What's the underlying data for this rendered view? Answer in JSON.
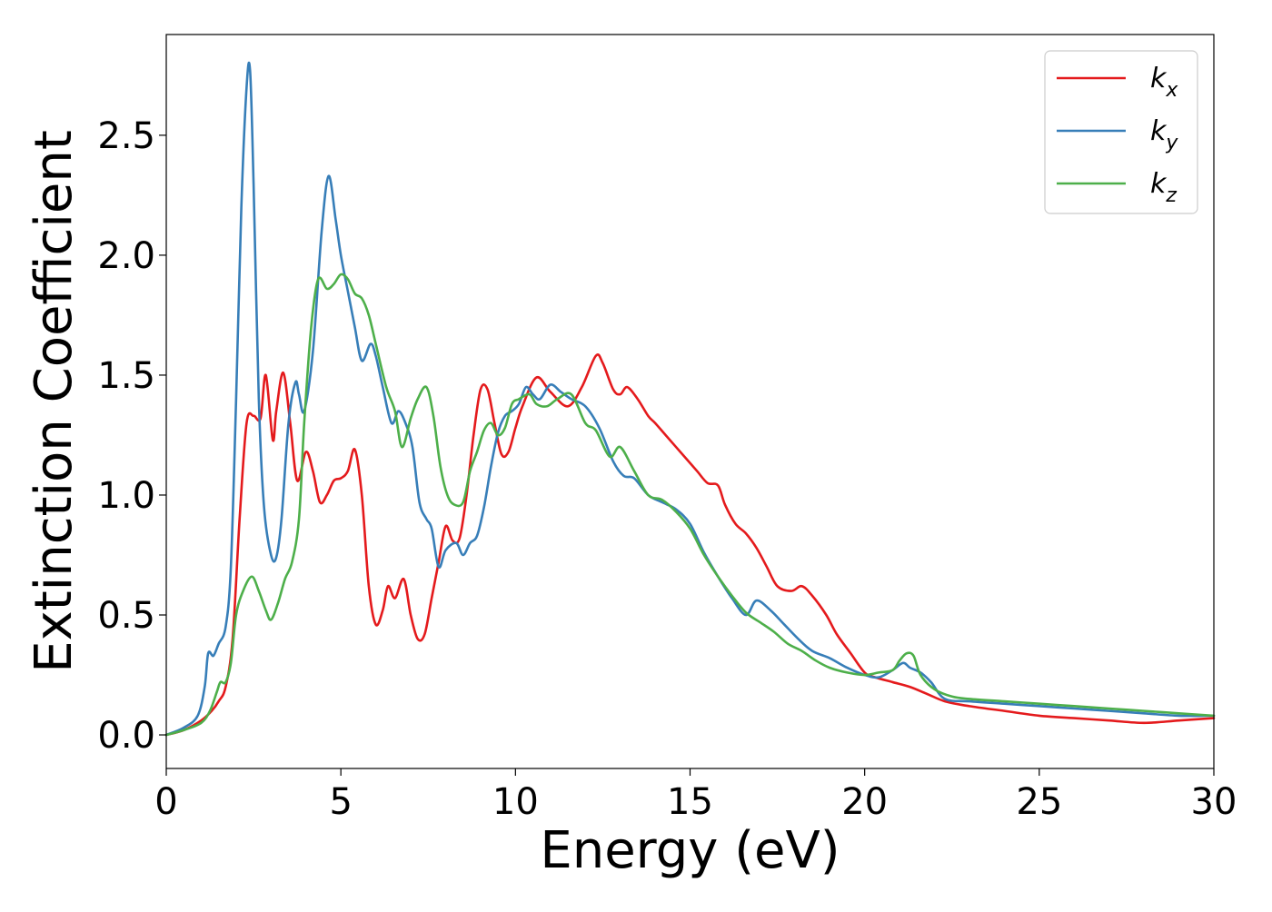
{
  "chart_data": {
    "type": "line",
    "xlabel": "Energy (eV)",
    "ylabel": "Extinction Coefficient",
    "xlim": [
      0,
      30
    ],
    "ylim": [
      -0.14,
      2.92
    ],
    "xticks": [
      0,
      5,
      10,
      15,
      20,
      25,
      30
    ],
    "xtick_labels": [
      "0",
      "5",
      "10",
      "15",
      "20",
      "25",
      "30"
    ],
    "yticks": [
      0.0,
      0.5,
      1.0,
      1.5,
      2.0,
      2.5
    ],
    "ytick_labels": [
      "0.0",
      "0.5",
      "1.0",
      "1.5",
      "2.0",
      "2.5"
    ],
    "grid": false,
    "legend_position": "top-right",
    "series": [
      {
        "name": "k_x",
        "legend_base": "k",
        "legend_sub": "x",
        "color": "#e41a1c",
        "x": [
          0,
          0.5,
          1.0,
          1.3,
          1.5,
          1.7,
          1.9,
          2.1,
          2.3,
          2.5,
          2.7,
          2.85,
          3.05,
          3.15,
          3.35,
          3.55,
          3.75,
          4.0,
          4.2,
          4.4,
          4.6,
          4.8,
          5.0,
          5.2,
          5.4,
          5.6,
          5.8,
          6.0,
          6.2,
          6.35,
          6.55,
          6.8,
          7.0,
          7.2,
          7.4,
          7.6,
          7.8,
          8.0,
          8.2,
          8.4,
          8.6,
          8.8,
          9.0,
          9.2,
          9.4,
          9.6,
          9.8,
          10.0,
          10.2,
          10.6,
          11.0,
          11.5,
          11.9,
          12.3,
          12.5,
          12.8,
          13.0,
          13.2,
          13.5,
          13.8,
          14.0,
          14.3,
          14.6,
          14.9,
          15.2,
          15.5,
          15.8,
          16.0,
          16.3,
          16.6,
          16.9,
          17.2,
          17.5,
          17.9,
          18.2,
          18.5,
          18.9,
          19.2,
          19.6,
          20.0,
          20.3,
          20.8,
          21.3,
          21.8,
          22.3,
          23.0,
          24.0,
          25.0,
          26.0,
          27.0,
          28.0,
          29.0,
          30.0
        ],
        "y": [
          0,
          0.02,
          0.06,
          0.1,
          0.14,
          0.2,
          0.4,
          0.9,
          1.3,
          1.33,
          1.32,
          1.5,
          1.23,
          1.35,
          1.51,
          1.3,
          1.06,
          1.18,
          1.1,
          0.97,
          1.0,
          1.06,
          1.07,
          1.1,
          1.19,
          1.0,
          0.62,
          0.46,
          0.52,
          0.62,
          0.57,
          0.65,
          0.5,
          0.4,
          0.42,
          0.57,
          0.72,
          0.87,
          0.81,
          0.82,
          1.0,
          1.25,
          1.44,
          1.44,
          1.3,
          1.17,
          1.18,
          1.28,
          1.37,
          1.49,
          1.43,
          1.37,
          1.45,
          1.58,
          1.55,
          1.44,
          1.42,
          1.45,
          1.4,
          1.33,
          1.3,
          1.25,
          1.2,
          1.15,
          1.1,
          1.05,
          1.04,
          0.96,
          0.88,
          0.84,
          0.78,
          0.7,
          0.62,
          0.6,
          0.62,
          0.58,
          0.5,
          0.42,
          0.34,
          0.26,
          0.24,
          0.22,
          0.2,
          0.17,
          0.14,
          0.12,
          0.1,
          0.08,
          0.07,
          0.06,
          0.05,
          0.06,
          0.07
        ]
      },
      {
        "name": "k_y",
        "legend_base": "k",
        "legend_sub": "y",
        "color": "#377eb8",
        "x": [
          0,
          0.5,
          0.9,
          1.1,
          1.2,
          1.35,
          1.5,
          1.7,
          1.85,
          2.0,
          2.15,
          2.3,
          2.4,
          2.5,
          2.65,
          2.8,
          3.0,
          3.15,
          3.3,
          3.5,
          3.7,
          3.8,
          3.95,
          4.2,
          4.45,
          4.65,
          4.85,
          5.0,
          5.2,
          5.4,
          5.6,
          5.85,
          6.0,
          6.2,
          6.45,
          6.65,
          6.85,
          7.05,
          7.25,
          7.45,
          7.6,
          7.8,
          8.0,
          8.3,
          8.5,
          8.7,
          8.9,
          9.1,
          9.3,
          9.5,
          9.7,
          9.9,
          10.1,
          10.3,
          10.5,
          10.7,
          11.0,
          11.3,
          11.6,
          12.0,
          12.4,
          12.8,
          13.1,
          13.4,
          13.8,
          14.2,
          14.6,
          15.0,
          15.4,
          15.8,
          16.2,
          16.6,
          16.9,
          17.3,
          17.7,
          18.1,
          18.5,
          19.0,
          19.5,
          20.0,
          20.4,
          20.8,
          21.1,
          21.3,
          21.6,
          21.9,
          22.3,
          23.0,
          24.0,
          25.0,
          26.0,
          27.0,
          28.0,
          29.0,
          30.0
        ],
        "y": [
          0,
          0.03,
          0.08,
          0.2,
          0.34,
          0.33,
          0.38,
          0.45,
          0.7,
          1.4,
          2.2,
          2.7,
          2.77,
          2.3,
          1.4,
          0.95,
          0.75,
          0.74,
          0.9,
          1.3,
          1.47,
          1.42,
          1.35,
          1.6,
          2.1,
          2.33,
          2.15,
          2.0,
          1.85,
          1.7,
          1.56,
          1.63,
          1.58,
          1.45,
          1.3,
          1.35,
          1.3,
          1.2,
          0.97,
          0.9,
          0.86,
          0.7,
          0.77,
          0.8,
          0.75,
          0.8,
          0.83,
          0.95,
          1.12,
          1.26,
          1.33,
          1.35,
          1.38,
          1.45,
          1.42,
          1.4,
          1.46,
          1.43,
          1.4,
          1.37,
          1.28,
          1.14,
          1.08,
          1.07,
          1.0,
          0.97,
          0.94,
          0.88,
          0.76,
          0.66,
          0.57,
          0.5,
          0.56,
          0.52,
          0.46,
          0.4,
          0.35,
          0.32,
          0.28,
          0.25,
          0.24,
          0.27,
          0.3,
          0.28,
          0.26,
          0.22,
          0.15,
          0.14,
          0.13,
          0.12,
          0.11,
          0.1,
          0.09,
          0.08,
          0.08
        ]
      },
      {
        "name": "k_z",
        "legend_base": "k",
        "legend_sub": "z",
        "color": "#4daf4a",
        "x": [
          0,
          0.5,
          1.0,
          1.25,
          1.45,
          1.55,
          1.7,
          1.85,
          2.0,
          2.2,
          2.45,
          2.65,
          2.85,
          3.0,
          3.2,
          3.4,
          3.6,
          3.8,
          3.95,
          4.15,
          4.35,
          4.6,
          4.8,
          5.0,
          5.2,
          5.4,
          5.6,
          5.8,
          6.0,
          6.3,
          6.55,
          6.75,
          7.0,
          7.2,
          7.45,
          7.65,
          7.85,
          8.05,
          8.25,
          8.5,
          8.7,
          8.9,
          9.1,
          9.3,
          9.5,
          9.7,
          9.9,
          10.1,
          10.4,
          10.6,
          10.9,
          11.2,
          11.6,
          12.0,
          12.3,
          12.7,
          13.0,
          13.4,
          13.8,
          14.2,
          14.6,
          15.0,
          15.4,
          15.8,
          16.2,
          16.6,
          17.0,
          17.4,
          17.8,
          18.2,
          18.6,
          19.0,
          19.5,
          20.0,
          20.4,
          20.8,
          21.0,
          21.2,
          21.4,
          21.6,
          22.0,
          22.5,
          23.0,
          24.0,
          25.0,
          26.0,
          27.0,
          28.0,
          29.0,
          30.0
        ],
        "y": [
          0,
          0.02,
          0.05,
          0.1,
          0.18,
          0.22,
          0.22,
          0.3,
          0.5,
          0.6,
          0.66,
          0.6,
          0.52,
          0.48,
          0.55,
          0.65,
          0.72,
          0.9,
          1.3,
          1.7,
          1.9,
          1.86,
          1.88,
          1.92,
          1.9,
          1.84,
          1.82,
          1.75,
          1.63,
          1.45,
          1.35,
          1.2,
          1.32,
          1.4,
          1.45,
          1.33,
          1.12,
          1.0,
          0.96,
          0.97,
          1.1,
          1.18,
          1.27,
          1.3,
          1.25,
          1.28,
          1.38,
          1.4,
          1.42,
          1.38,
          1.37,
          1.4,
          1.42,
          1.3,
          1.27,
          1.16,
          1.2,
          1.1,
          1.0,
          0.98,
          0.93,
          0.86,
          0.75,
          0.66,
          0.58,
          0.51,
          0.47,
          0.43,
          0.38,
          0.35,
          0.31,
          0.28,
          0.26,
          0.25,
          0.26,
          0.27,
          0.31,
          0.34,
          0.33,
          0.25,
          0.19,
          0.16,
          0.15,
          0.14,
          0.13,
          0.12,
          0.11,
          0.1,
          0.09,
          0.08
        ]
      }
    ]
  }
}
